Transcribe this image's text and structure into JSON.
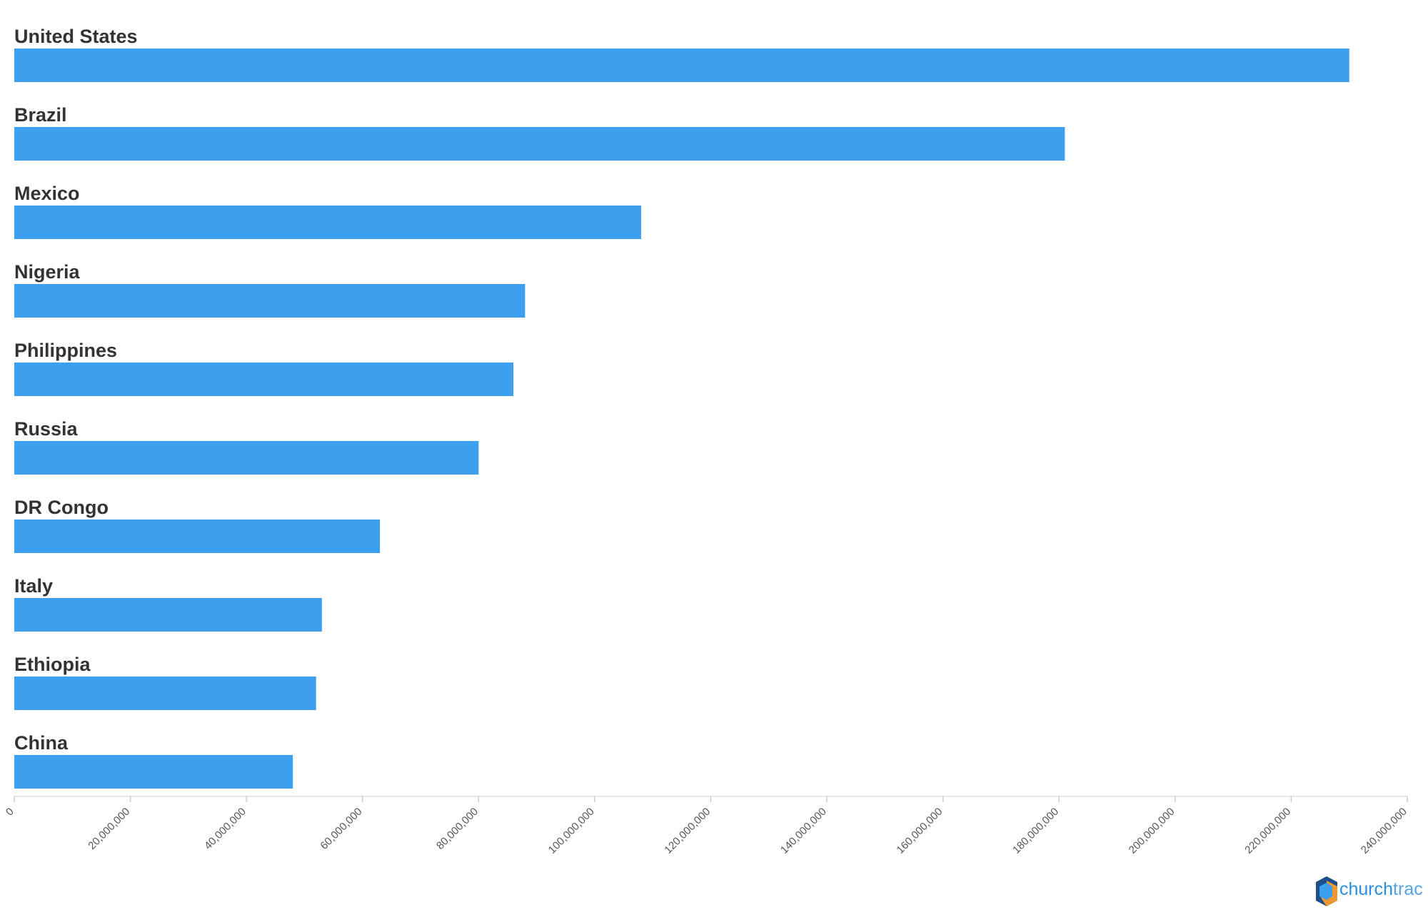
{
  "chart_data": {
    "type": "bar",
    "orientation": "horizontal",
    "color": "#3ca0ee",
    "categories": [
      "United States",
      "Brazil",
      "Mexico",
      "Nigeria",
      "Philippines",
      "Russia",
      "DR Congo",
      "Italy",
      "Ethiopia",
      "China"
    ],
    "values": [
      230000000,
      181000000,
      108000000,
      88000000,
      86000000,
      80000000,
      63000000,
      53000000,
      52000000,
      48000000
    ],
    "xlim": [
      0,
      240000000
    ],
    "xticks": [
      0,
      {
        "value": 20000000,
        "label": "20,000,000"
      },
      {
        "value": 40000000,
        "label": "40,000,000"
      },
      {
        "value": 60000000,
        "label": "60,000,000"
      },
      {
        "value": 80000000,
        "label": "80,000,000"
      },
      {
        "value": 100000000,
        "label": "100,000,000"
      },
      {
        "value": 120000000,
        "label": "120,000,000"
      },
      {
        "value": 140000000,
        "label": "140,000,000"
      },
      {
        "value": 160000000,
        "label": "160,000,000"
      },
      {
        "value": 180000000,
        "label": "180,000,000"
      },
      {
        "value": 200000000,
        "label": "200,000,000"
      },
      {
        "value": 220000000,
        "label": "220,000,000"
      },
      {
        "value": 240000000,
        "label": "240,000,000"
      }
    ],
    "grid": false
  },
  "logo": {
    "text_1": "church",
    "text_2": "trac"
  }
}
